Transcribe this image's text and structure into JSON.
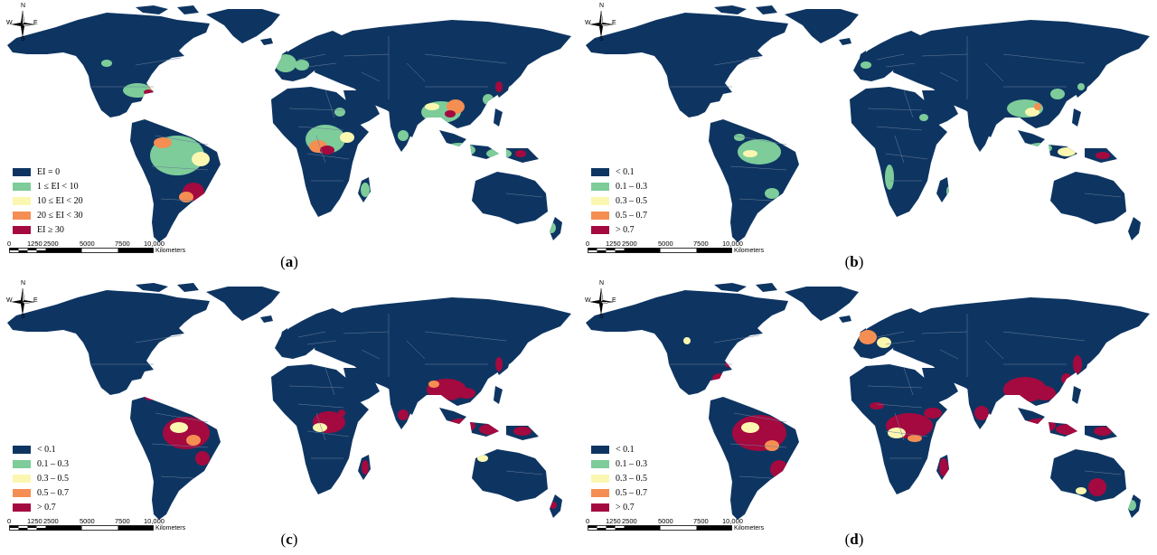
{
  "colors": {
    "ocean": "#ffffff",
    "land": "#0e3562",
    "border": "#6c7e99",
    "class1": "#7dcc9a",
    "class2": "#fbf7b0",
    "class3": "#f58e52",
    "class4": "#a4093f"
  },
  "compass": {
    "n": "N",
    "s": "S",
    "e": "E",
    "w": "W"
  },
  "scale": {
    "ticks": [
      "0",
      "1250",
      "2500",
      "5000",
      "7500",
      "10,000"
    ],
    "unit": "Kilometers"
  },
  "panels": [
    {
      "label_open": "(",
      "label": "a",
      "label_close": ")",
      "legend": [
        {
          "label": "EI = 0",
          "color": "#0e3562"
        },
        {
          "label": "1 ≤ EI < 10",
          "color": "#7dcc9a"
        },
        {
          "label": "10 ≤ EI < 20",
          "color": "#fbf7b0"
        },
        {
          "label": "20 ≤ EI < 30",
          "color": "#f58e52"
        },
        {
          "label": "EI ≥ 30",
          "color": "#a4093f"
        }
      ]
    },
    {
      "label_open": "(",
      "label": "b",
      "label_close": ")",
      "legend": [
        {
          "label": "< 0.1",
          "color": "#0e3562"
        },
        {
          "label": "0.1 – 0.3",
          "color": "#7dcc9a"
        },
        {
          "label": "0.3 – 0.5",
          "color": "#fbf7b0"
        },
        {
          "label": "0.5 – 0.7",
          "color": "#f58e52"
        },
        {
          "label": "> 0.7",
          "color": "#a4093f"
        }
      ]
    },
    {
      "label_open": "(",
      "label": "c",
      "label_close": ")",
      "legend": [
        {
          "label": "< 0.1",
          "color": "#0e3562"
        },
        {
          "label": "0.1 – 0.3",
          "color": "#7dcc9a"
        },
        {
          "label": "0.3 – 0.5",
          "color": "#fbf7b0"
        },
        {
          "label": "0.5 – 0.7",
          "color": "#f58e52"
        },
        {
          "label": "> 0.7",
          "color": "#a4093f"
        }
      ]
    },
    {
      "label_open": "(",
      "label": "d",
      "label_close": ")",
      "legend": [
        {
          "label": "< 0.1",
          "color": "#0e3562"
        },
        {
          "label": "0.1 – 0.3",
          "color": "#7dcc9a"
        },
        {
          "label": "0.3 – 0.5",
          "color": "#fbf7b0"
        },
        {
          "label": "0.5 – 0.7",
          "color": "#f58e52"
        },
        {
          "label": "> 0.7",
          "color": "#a4093f"
        }
      ]
    }
  ]
}
